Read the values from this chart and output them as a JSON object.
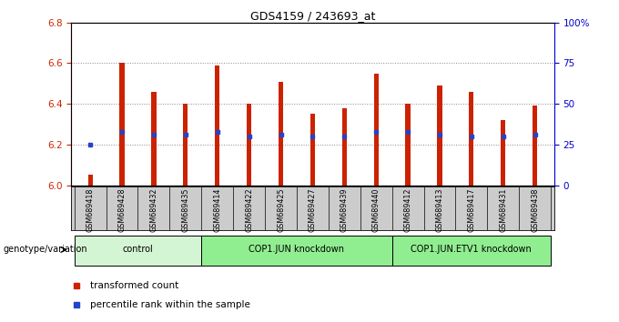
{
  "title": "GDS4159 / 243693_at",
  "samples": [
    "GSM689418",
    "GSM689428",
    "GSM689432",
    "GSM689435",
    "GSM689414",
    "GSM689422",
    "GSM689425",
    "GSM689427",
    "GSM689439",
    "GSM689440",
    "GSM689412",
    "GSM689413",
    "GSM689417",
    "GSM689431",
    "GSM689438"
  ],
  "red_values": [
    6.05,
    6.6,
    6.46,
    6.4,
    6.59,
    6.4,
    6.51,
    6.35,
    6.38,
    6.55,
    6.4,
    6.49,
    6.46,
    6.32,
    6.39
  ],
  "blue_values": [
    6.2,
    6.26,
    6.25,
    6.25,
    6.26,
    6.24,
    6.25,
    6.24,
    6.24,
    6.26,
    6.26,
    6.25,
    6.24,
    6.24,
    6.25
  ],
  "ymin": 6.0,
  "ymax": 6.8,
  "yticks": [
    6.0,
    6.2,
    6.4,
    6.6,
    6.8
  ],
  "right_yticks": [
    0,
    25,
    50,
    75,
    100
  ],
  "right_ytick_labels": [
    "0",
    "25",
    "50",
    "75",
    "100%"
  ],
  "groups": [
    {
      "label": "control",
      "start": 0,
      "end": 4
    },
    {
      "label": "COP1.JUN knockdown",
      "start": 4,
      "end": 10
    },
    {
      "label": "COP1.JUN.ETV1 knockdown",
      "start": 10,
      "end": 15
    }
  ],
  "group_label_prefix": "genotype/variation",
  "bar_color": "#cc2200",
  "blue_color": "#2244cc",
  "tick_label_color_left": "#cc2200",
  "tick_label_color_right": "#0000cc",
  "legend_red": "transformed count",
  "legend_blue": "percentile rank within the sample",
  "bar_width": 0.15,
  "grid_color": "#888888",
  "group_colors": [
    "#d4f5d4",
    "#90ee90",
    "#90ee90"
  ],
  "sample_bg_color": "#cccccc"
}
